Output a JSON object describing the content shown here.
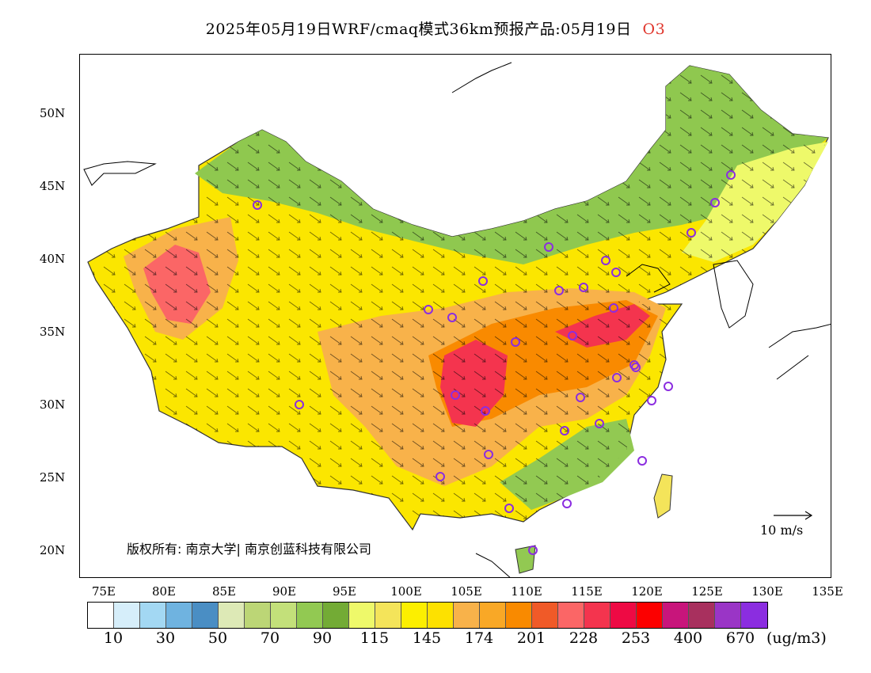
{
  "title": {
    "main": "2025年05月19日WRF/cmaq模式36km预报产品:05月19日",
    "variable": "O3"
  },
  "axes": {
    "lat_ticks": [
      "50N",
      "45N",
      "40N",
      "35N",
      "30N",
      "25N",
      "20N"
    ],
    "lon_ticks": [
      "75E",
      "80E",
      "85E",
      "90E",
      "95E",
      "100E",
      "105E",
      "110E",
      "115E",
      "120E",
      "125E",
      "130E",
      "135E"
    ]
  },
  "copyright": "版权所有: 南京大学| 南京创蓝科技有限公司",
  "wind_reference": "10 m/s",
  "colorbar": {
    "colors": [
      "#ffffff",
      "#d6eefa",
      "#a3d8f3",
      "#6fb3e0",
      "#4a8ec4",
      "#dde9b6",
      "#bcd676",
      "#c3e07a",
      "#92c952",
      "#73ab35",
      "#eef96a",
      "#f4e45a",
      "#fcef00",
      "#fde100",
      "#f8b24a",
      "#f9a826",
      "#f98a00",
      "#f05a28",
      "#fb6666",
      "#f4344e",
      "#ee0a44",
      "#fc0000",
      "#c8157b",
      "#a8305e",
      "#9a35c6",
      "#8b2de0"
    ],
    "labels": [
      "10",
      "30",
      "50",
      "70",
      "90",
      "115",
      "145",
      "174",
      "201",
      "228",
      "253",
      "400",
      "670"
    ],
    "unit": "(ug/m3)"
  },
  "stations_note": "",
  "map": {
    "region": "China",
    "land_color": "#fbe600",
    "sea_color": "#ffffff"
  }
}
